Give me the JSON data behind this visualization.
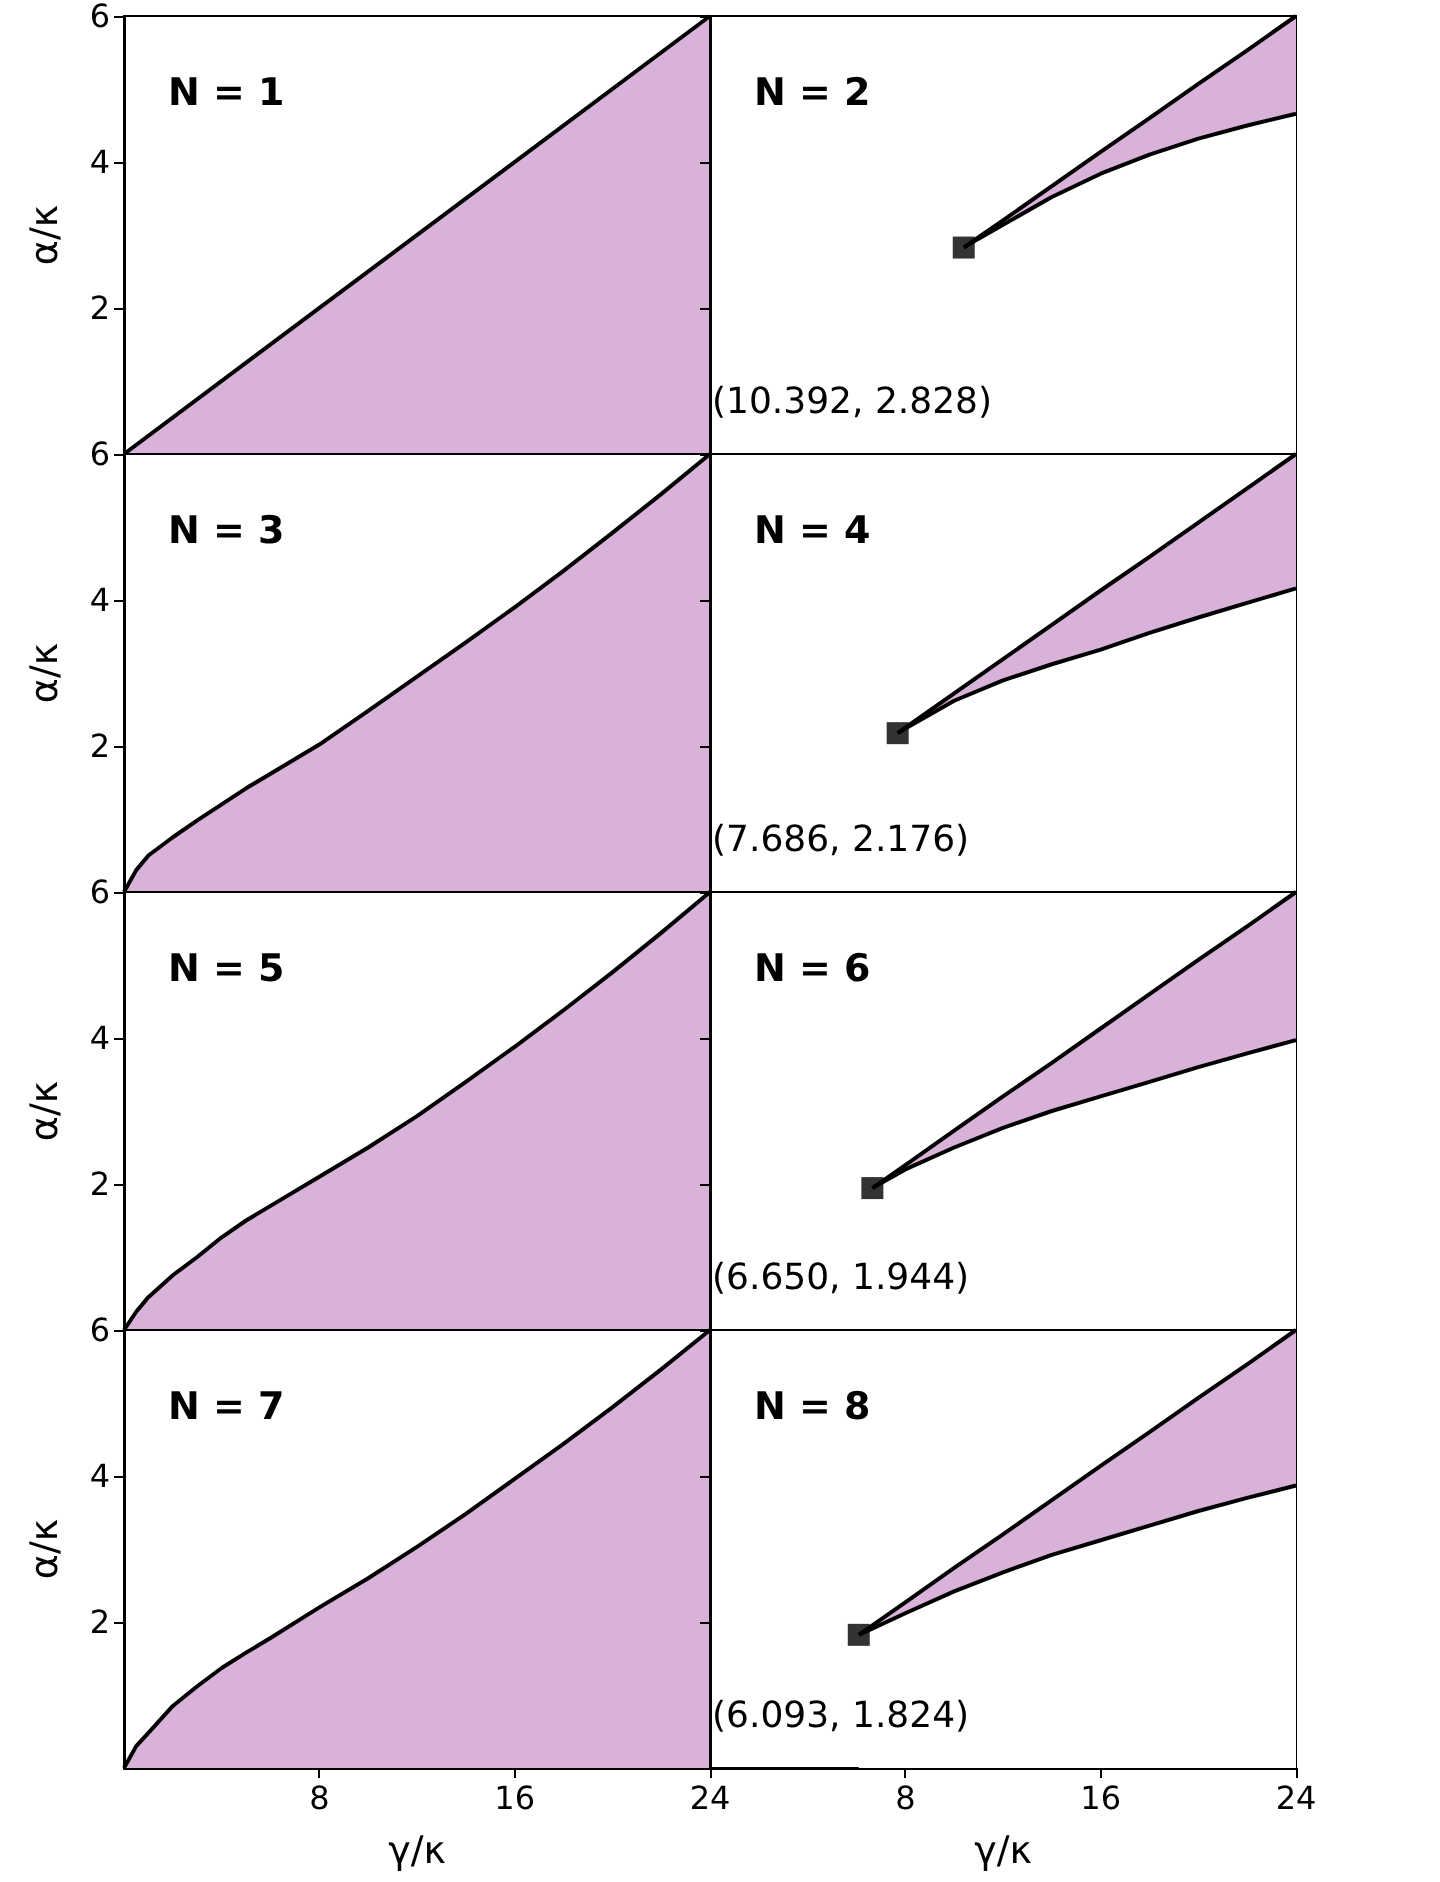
{
  "chart_data": [
    {
      "type": "area",
      "title": "N = 1",
      "ylabel": "α/κ",
      "xlim": [
        0,
        24
      ],
      "ylim": [
        0,
        6
      ],
      "xticks": [
        8,
        16,
        24
      ],
      "yticks": [
        2,
        4,
        6
      ],
      "tick_labels": "y",
      "series": [
        {
          "color": "#d8b2d8",
          "x": [
            0,
            24
          ],
          "values": [
            0,
            6
          ]
        }
      ]
    },
    {
      "type": "area",
      "title": "N = 2",
      "xlim": [
        0,
        24
      ],
      "ylim": [
        0,
        6
      ],
      "xticks": [
        8,
        16,
        24
      ],
      "yticks": [
        2,
        4,
        6
      ],
      "tick_labels": false,
      "stacked": true,
      "annotations": [
        "(10.392, 2.828)"
      ],
      "series": [
        {
          "color": "#ffffff",
          "x": [
            10.392,
            11,
            12,
            14,
            16,
            18,
            20,
            22,
            24
          ],
          "values": [
            2.828,
            2.95,
            3.14,
            3.52,
            3.84,
            4.1,
            4.32,
            4.5,
            4.66
          ]
        },
        {
          "color": "#d8b2d8",
          "x": [
            10.392,
            11,
            12,
            14,
            16,
            18,
            20,
            22,
            24
          ],
          "values": [
            0,
            0.02,
            0.06,
            0.15,
            0.3,
            0.5,
            0.75,
            1.03,
            1.34
          ]
        },
        {
          "type": "scatter",
          "marker": "square",
          "color": "#000000",
          "x": [
            10.392
          ],
          "values": [
            2.828
          ]
        }
      ]
    },
    {
      "type": "area",
      "title": "N = 3",
      "ylabel": "α/κ",
      "xlim": [
        0,
        24
      ],
      "ylim": [
        0,
        6
      ],
      "xticks": [
        8,
        16,
        24
      ],
      "yticks": [
        2,
        4,
        6
      ],
      "tick_labels": "y",
      "series": [
        {
          "color": "#d8b2d8",
          "x": [
            0,
            0.5,
            1,
            2,
            3,
            4,
            5,
            6,
            8,
            10,
            12,
            14,
            16,
            18,
            20,
            22,
            24
          ],
          "values": [
            0,
            0.3,
            0.5,
            0.75,
            0.98,
            1.2,
            1.42,
            1.62,
            2.02,
            2.48,
            2.95,
            3.42,
            3.9,
            4.4,
            4.92,
            5.45,
            6
          ]
        }
      ]
    },
    {
      "type": "area",
      "title": "N = 4",
      "xlim": [
        0,
        24
      ],
      "ylim": [
        0,
        6
      ],
      "xticks": [
        8,
        16,
        24
      ],
      "yticks": [
        2,
        4,
        6
      ],
      "tick_labels": false,
      "stacked": true,
      "annotations": [
        "(7.686, 2.176)"
      ],
      "series": [
        {
          "color": "#ffffff",
          "x": [
            7.686,
            8,
            10,
            12,
            14,
            16,
            18,
            20,
            22,
            24
          ],
          "values": [
            2.176,
            2.24,
            2.62,
            2.9,
            3.12,
            3.32,
            3.55,
            3.76,
            3.96,
            4.16
          ]
        },
        {
          "color": "#d8b2d8",
          "x": [
            7.686,
            8,
            10,
            12,
            14,
            16,
            18,
            20,
            22,
            24
          ],
          "values": [
            0,
            0.01,
            0.1,
            0.29,
            0.54,
            0.81,
            1.04,
            1.3,
            1.57,
            1.84
          ]
        },
        {
          "type": "scatter",
          "marker": "square",
          "color": "#000000",
          "x": [
            7.686
          ],
          "values": [
            2.176
          ]
        }
      ]
    },
    {
      "type": "area",
      "title": "N = 5",
      "ylabel": "α/κ",
      "xlim": [
        0,
        24
      ],
      "ylim": [
        0,
        6
      ],
      "xticks": [
        8,
        16,
        24
      ],
      "yticks": [
        2,
        4,
        6
      ],
      "tick_labels": "y",
      "series": [
        {
          "color": "#d8b2d8",
          "x": [
            0,
            0.5,
            1,
            2,
            3,
            4,
            5,
            6,
            8,
            10,
            12,
            14,
            16,
            18,
            20,
            22,
            24
          ],
          "values": [
            0,
            0.25,
            0.45,
            0.75,
            1.0,
            1.27,
            1.5,
            1.7,
            2.1,
            2.5,
            2.93,
            3.4,
            3.88,
            4.38,
            4.9,
            5.44,
            6
          ]
        }
      ]
    },
    {
      "type": "area",
      "title": "N = 6",
      "xlim": [
        0,
        24
      ],
      "ylim": [
        0,
        6
      ],
      "xticks": [
        8,
        16,
        24
      ],
      "yticks": [
        2,
        4,
        6
      ],
      "tick_labels": false,
      "stacked": true,
      "annotations": [
        "(6.650, 1.944)"
      ],
      "series": [
        {
          "color": "#ffffff",
          "x": [
            6.65,
            8,
            10,
            12,
            14,
            16,
            18,
            20,
            22,
            24
          ],
          "values": [
            1.944,
            2.2,
            2.5,
            2.77,
            3.0,
            3.2,
            3.4,
            3.6,
            3.79,
            3.97
          ]
        },
        {
          "color": "#d8b2d8",
          "x": [
            6.65,
            8,
            10,
            12,
            14,
            16,
            18,
            20,
            22,
            24
          ],
          "values": [
            0,
            0.06,
            0.23,
            0.43,
            0.66,
            0.93,
            1.2,
            1.47,
            1.74,
            2.03
          ]
        },
        {
          "type": "scatter",
          "marker": "square",
          "color": "#000000",
          "x": [
            6.65
          ],
          "values": [
            1.944
          ]
        }
      ]
    },
    {
      "type": "area",
      "title": "N = 7",
      "xlabel": "γ/κ",
      "ylabel": "α/κ",
      "xlim": [
        0,
        24
      ],
      "ylim": [
        0,
        6
      ],
      "xticks": [
        8,
        16,
        24
      ],
      "yticks": [
        2,
        4,
        6
      ],
      "series": [
        {
          "color": "#d8b2d8",
          "x": [
            0,
            0.5,
            1,
            2,
            3,
            4,
            5,
            6,
            8,
            10,
            12,
            14,
            16,
            18,
            20,
            22,
            24
          ],
          "values": [
            0,
            0.3,
            0.48,
            0.85,
            1.12,
            1.37,
            1.58,
            1.78,
            2.2,
            2.6,
            3.03,
            3.48,
            3.96,
            4.44,
            4.94,
            5.46,
            6
          ]
        }
      ]
    },
    {
      "type": "area",
      "title": "N = 8",
      "xlabel": "γ/κ",
      "xlim": [
        0,
        24
      ],
      "ylim": [
        0,
        6
      ],
      "xticks": [
        8,
        16,
        24
      ],
      "yticks": [
        2,
        4,
        6
      ],
      "tick_labels": "x",
      "stacked": true,
      "annotations": [
        "(6.093, 1.824)"
      ],
      "series": [
        {
          "color": "#ffffff",
          "x": [
            6.093,
            8,
            10,
            12,
            14,
            16,
            18,
            20,
            22,
            24
          ],
          "values": [
            1.824,
            2.12,
            2.42,
            2.68,
            2.92,
            3.12,
            3.32,
            3.52,
            3.7,
            3.87
          ]
        },
        {
          "color": "#d8b2d8",
          "x": [
            6.093,
            8,
            10,
            12,
            14,
            16,
            18,
            20,
            22,
            24
          ],
          "values": [
            0,
            0.15,
            0.32,
            0.52,
            0.75,
            1.02,
            1.28,
            1.55,
            1.83,
            2.13
          ]
        },
        {
          "type": "scatter",
          "marker": "square",
          "color": "#000000",
          "x": [
            6.093
          ],
          "values": [
            1.824
          ]
        }
      ]
    }
  ]
}
